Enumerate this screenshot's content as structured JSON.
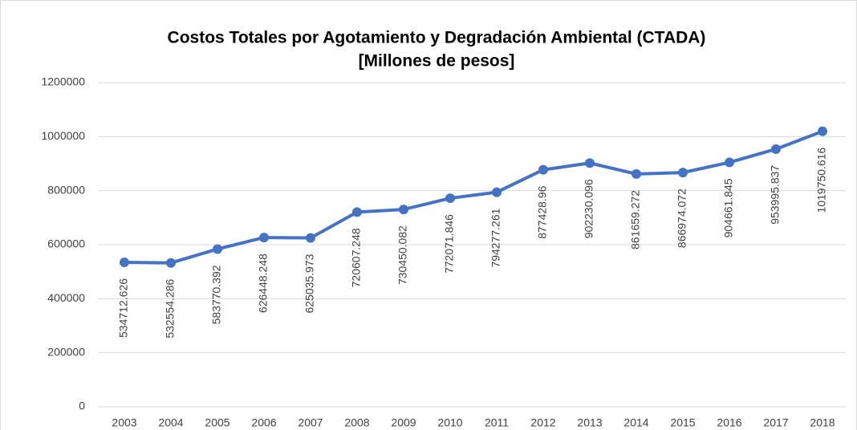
{
  "chart_data": {
    "type": "line",
    "title": "Costos Totales por Agotamiento y Degradación Ambiental (CTADA)",
    "subtitle": "[Millones de pesos]",
    "categories": [
      "2003",
      "2004",
      "2005",
      "2006",
      "2007",
      "2008",
      "2009",
      "2010",
      "2011",
      "2012",
      "2013",
      "2014",
      "2015",
      "2016",
      "2017",
      "2018"
    ],
    "series": [
      {
        "name": "CTADA",
        "color": "#4472c4",
        "values": [
          534712.626,
          532554.286,
          583770.392,
          626448.248,
          625035.973,
          720607.248,
          730450.082,
          772071.846,
          794277.261,
          877428.96,
          902230.096,
          861659.272,
          866974.072,
          904661.845,
          953995.837,
          1019750.616
        ]
      }
    ],
    "ylim": [
      0,
      1200000
    ],
    "yticks": [
      0,
      200000,
      400000,
      600000,
      800000,
      1000000,
      1200000
    ],
    "grid": true
  }
}
